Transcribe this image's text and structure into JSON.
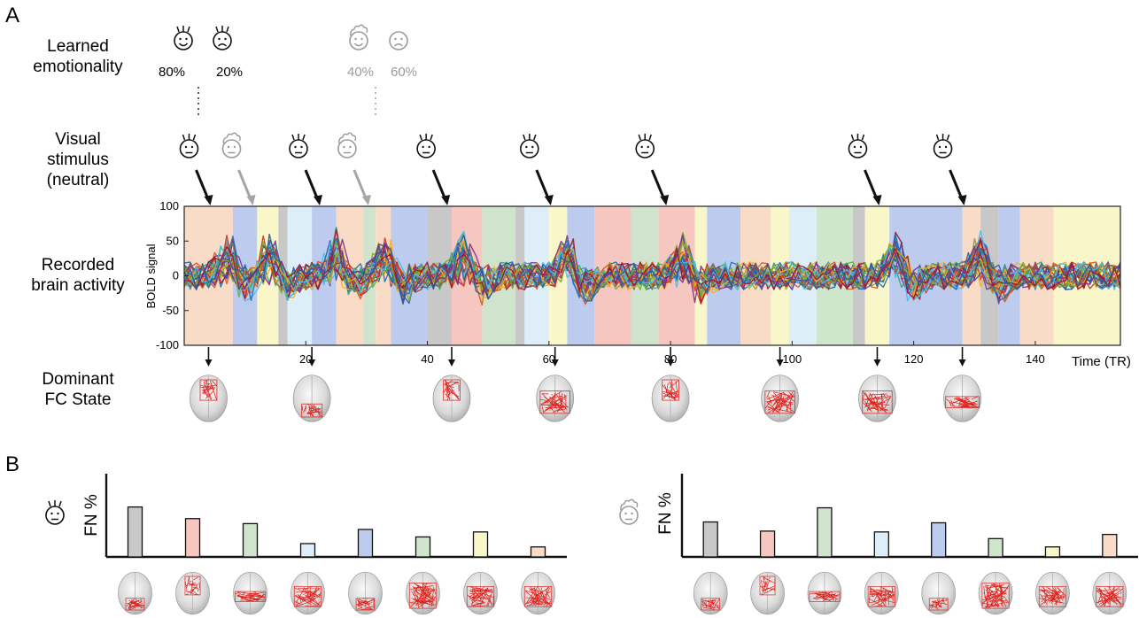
{
  "panel_a": {
    "label": "A",
    "row_labels": {
      "learned": [
        "Learned",
        "emotionality"
      ],
      "visual": [
        "Visual",
        "stimulus",
        "(neutral)"
      ],
      "recorded": [
        "Recorded",
        "brain activity"
      ],
      "dominant": [
        "Dominant",
        "FC State"
      ]
    },
    "emotionality": {
      "face_a": {
        "happy": "80%",
        "sad": "20%"
      },
      "face_b": {
        "happy": "40%",
        "sad": "60%"
      }
    },
    "time_label": "Time (TR)",
    "ylabel": "BOLD signal"
  },
  "panel_b": {
    "label": "B",
    "ylabel": "FN %"
  },
  "colors": {
    "state_colors": [
      "#c8c8c8",
      "#f6c7c0",
      "#cfe3cd",
      "#ddeef9",
      "#bccbee",
      "#cfe6cd",
      "#f9f6c9",
      "#f9dcc8"
    ],
    "face_a": "#111111",
    "face_b": "#9a9a9a",
    "connection": "#e0201b"
  },
  "chart_data": [
    {
      "type": "line",
      "ylabel": "BOLD signal",
      "xlabel": "Time (TR)",
      "xlim": [
        0,
        154
      ],
      "ylim": [
        -100,
        100
      ],
      "xticks": [
        20,
        40,
        60,
        80,
        100,
        120,
        140
      ],
      "yticks": [
        -100,
        -50,
        0,
        50,
        100
      ],
      "state_bands": [
        {
          "start": 0,
          "end": 8,
          "state": 7
        },
        {
          "start": 8,
          "end": 12,
          "state": 4
        },
        {
          "start": 12,
          "end": 15.5,
          "state": 6
        },
        {
          "start": 15.5,
          "end": 17,
          "state": 0
        },
        {
          "start": 17,
          "end": 21,
          "state": 3
        },
        {
          "start": 21,
          "end": 25,
          "state": 4
        },
        {
          "start": 25,
          "end": 29.5,
          "state": 7
        },
        {
          "start": 29.5,
          "end": 31.5,
          "state": 2
        },
        {
          "start": 31.5,
          "end": 34,
          "state": 7
        },
        {
          "start": 34,
          "end": 40,
          "state": 4
        },
        {
          "start": 40,
          "end": 44,
          "state": 0
        },
        {
          "start": 44,
          "end": 49,
          "state": 1
        },
        {
          "start": 49,
          "end": 54.5,
          "state": 2
        },
        {
          "start": 54.5,
          "end": 56,
          "state": 0
        },
        {
          "start": 56,
          "end": 60,
          "state": 3
        },
        {
          "start": 60,
          "end": 63,
          "state": 6
        },
        {
          "start": 63,
          "end": 67.5,
          "state": 4
        },
        {
          "start": 67.5,
          "end": 73.5,
          "state": 1
        },
        {
          "start": 73.5,
          "end": 78,
          "state": 2
        },
        {
          "start": 78,
          "end": 84,
          "state": 1
        },
        {
          "start": 84,
          "end": 86,
          "state": 6
        },
        {
          "start": 86,
          "end": 91.5,
          "state": 4
        },
        {
          "start": 91.5,
          "end": 96.5,
          "state": 7
        },
        {
          "start": 96.5,
          "end": 99.5,
          "state": 6
        },
        {
          "start": 99.5,
          "end": 104,
          "state": 3
        },
        {
          "start": 104,
          "end": 110,
          "state": 5
        },
        {
          "start": 110,
          "end": 112,
          "state": 0
        },
        {
          "start": 112,
          "end": 116,
          "state": 6
        },
        {
          "start": 116,
          "end": 128,
          "state": 4
        },
        {
          "start": 128,
          "end": 131,
          "state": 7
        },
        {
          "start": 131,
          "end": 134,
          "state": 0
        },
        {
          "start": 134,
          "end": 137.5,
          "state": 4
        },
        {
          "start": 137.5,
          "end": 143,
          "state": 7
        },
        {
          "start": 143,
          "end": 154,
          "state": 6
        }
      ],
      "stimulus_onsets": [
        {
          "time": 4,
          "face": "a"
        },
        {
          "time": 11,
          "face": "b"
        },
        {
          "time": 22,
          "face": "a"
        },
        {
          "time": 30,
          "face": "b"
        },
        {
          "time": 43,
          "face": "a"
        },
        {
          "time": 60,
          "face": "a"
        },
        {
          "time": 79,
          "face": "a"
        },
        {
          "time": 114,
          "face": "a"
        },
        {
          "time": 128,
          "face": "a"
        }
      ],
      "dominant_state_times": [
        4,
        21,
        44,
        61,
        80,
        98,
        114,
        128
      ]
    },
    {
      "type": "bar",
      "ylabel": "FN %",
      "categories": [
        "1",
        "2",
        "3",
        "4",
        "5",
        "6",
        "7",
        "8"
      ],
      "values": [
        60,
        46,
        40,
        16,
        33,
        24,
        30,
        12
      ],
      "ylim": [
        0,
        100
      ]
    },
    {
      "type": "bar",
      "ylabel": "FN %",
      "categories": [
        "1",
        "2",
        "3",
        "4",
        "5",
        "6",
        "7",
        "8"
      ],
      "values": [
        42,
        31,
        59,
        30,
        41,
        22,
        12,
        27
      ],
      "ylim": [
        0,
        100
      ]
    }
  ]
}
